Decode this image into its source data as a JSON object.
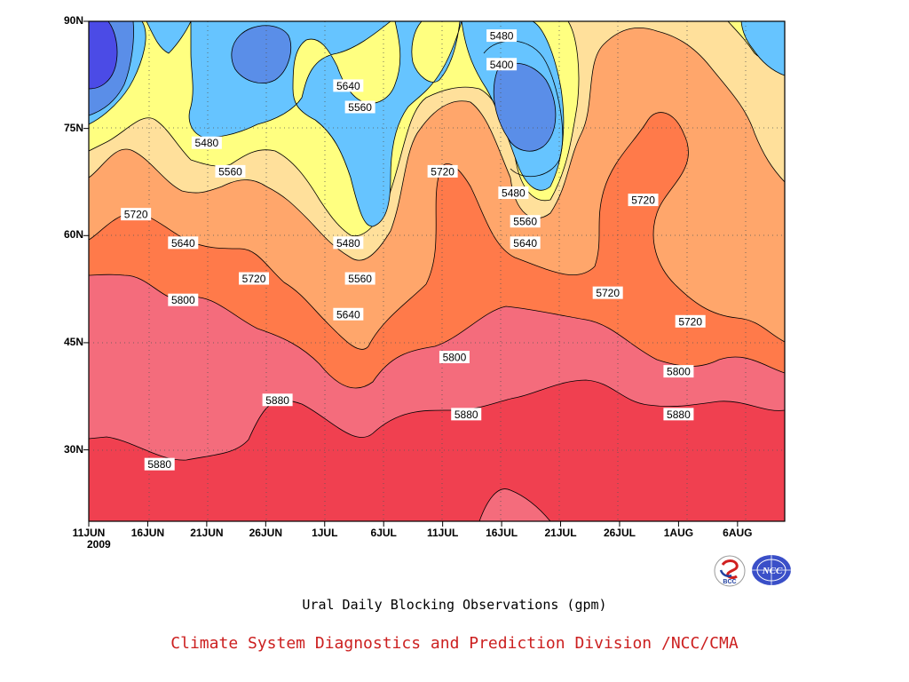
{
  "chart_data": {
    "type": "heatmap",
    "subtype": "filled-contour (time-latitude Hovmoller)",
    "caption": "Ural Daily Blocking Observations (gpm)",
    "credit": "Climate System Diagnostics and Prediction Division /NCC/CMA",
    "year_label": "2009",
    "x_ticks": [
      "11JUN",
      "16JUN",
      "21JUN",
      "26JUN",
      "1JUL",
      "6JUL",
      "11JUL",
      "16JUL",
      "21JUL",
      "26JUL",
      "1AUG",
      "6AUG"
    ],
    "y_ticks": [
      "30N",
      "45N",
      "60N",
      "75N",
      "90N"
    ],
    "y_tick_values": [
      30,
      45,
      60,
      75,
      90
    ],
    "ylim": [
      20,
      90
    ],
    "x_days_range": [
      "2009-06-11",
      "2009-08-09"
    ],
    "contour_levels": [
      5320,
      5400,
      5480,
      5560,
      5640,
      5720,
      5800,
      5880
    ],
    "level_colors": {
      "below_5320": "#4b4be6",
      "5320_5400": "#5a8ee8",
      "5400_5480": "#5a8ee8",
      "5480_5560": "#66c4ff",
      "5560_5640": "#ffff80",
      "5640_5720": "#ffe09b",
      "5720_5800": "#ffa66b",
      "5800_5880": "#ff7a4a",
      "5880_5960": "#f46c7c",
      "above_5960": "#f04050"
    },
    "contour_labels": [
      {
        "text": "5480",
        "date": "2009-07-16",
        "lat": 88
      },
      {
        "text": "5400",
        "date": "2009-07-16",
        "lat": 84
      },
      {
        "text": "5640",
        "date": "2009-07-03",
        "lat": 81
      },
      {
        "text": "5560",
        "date": "2009-07-04",
        "lat": 78
      },
      {
        "text": "5480",
        "date": "2009-06-21",
        "lat": 73
      },
      {
        "text": "5560",
        "date": "2009-06-23",
        "lat": 69
      },
      {
        "text": "5720",
        "date": "2009-07-11",
        "lat": 69
      },
      {
        "text": "5480",
        "date": "2009-07-17",
        "lat": 66
      },
      {
        "text": "5560",
        "date": "2009-07-18",
        "lat": 62
      },
      {
        "text": "5720",
        "date": "2009-06-15",
        "lat": 63
      },
      {
        "text": "5720",
        "date": "2009-07-28",
        "lat": 65
      },
      {
        "text": "5640",
        "date": "2009-06-19",
        "lat": 59
      },
      {
        "text": "5480",
        "date": "2009-07-03",
        "lat": 59
      },
      {
        "text": "5640",
        "date": "2009-07-18",
        "lat": 59
      },
      {
        "text": "5720",
        "date": "2009-06-25",
        "lat": 54
      },
      {
        "text": "5560",
        "date": "2009-07-04",
        "lat": 54
      },
      {
        "text": "5800",
        "date": "2009-06-19",
        "lat": 51
      },
      {
        "text": "5720",
        "date": "2009-07-25",
        "lat": 52
      },
      {
        "text": "5640",
        "date": "2009-07-03",
        "lat": 49
      },
      {
        "text": "5720",
        "date": "2009-08-01",
        "lat": 48
      },
      {
        "text": "5800",
        "date": "2009-07-12",
        "lat": 43
      },
      {
        "text": "5800",
        "date": "2009-07-31",
        "lat": 41
      },
      {
        "text": "5880",
        "date": "2009-06-27",
        "lat": 37
      },
      {
        "text": "5880",
        "date": "2009-07-13",
        "lat": 35
      },
      {
        "text": "5880",
        "date": "2009-07-31",
        "lat": 35
      },
      {
        "text": "5880",
        "date": "2009-06-17",
        "lat": 28
      }
    ]
  }
}
